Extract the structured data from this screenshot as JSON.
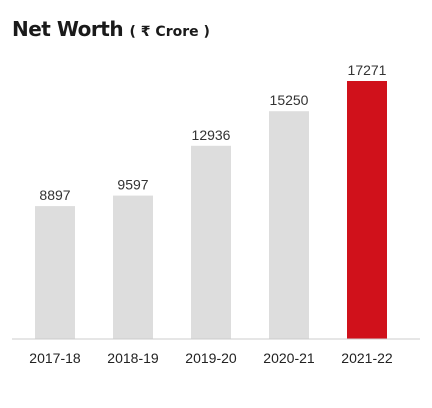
{
  "title": {
    "main": "Net Worth",
    "unit": "( ₹ Crore )"
  },
  "colors": {
    "bar": "#dddddd",
    "highlight": "#d0111b",
    "axis": "#cccccc"
  },
  "chart_data": {
    "type": "bar",
    "title": "Net Worth ( ₹ Crore )",
    "xlabel": "",
    "ylabel": "",
    "categories": [
      "2017-18",
      "2018-19",
      "2019-20",
      "2020-21",
      "2021-22"
    ],
    "values": [
      8897,
      9597,
      12936,
      15250,
      17271
    ],
    "highlight_index": 4,
    "ylim": [
      0,
      17271
    ],
    "grid": false,
    "legend": "none"
  }
}
